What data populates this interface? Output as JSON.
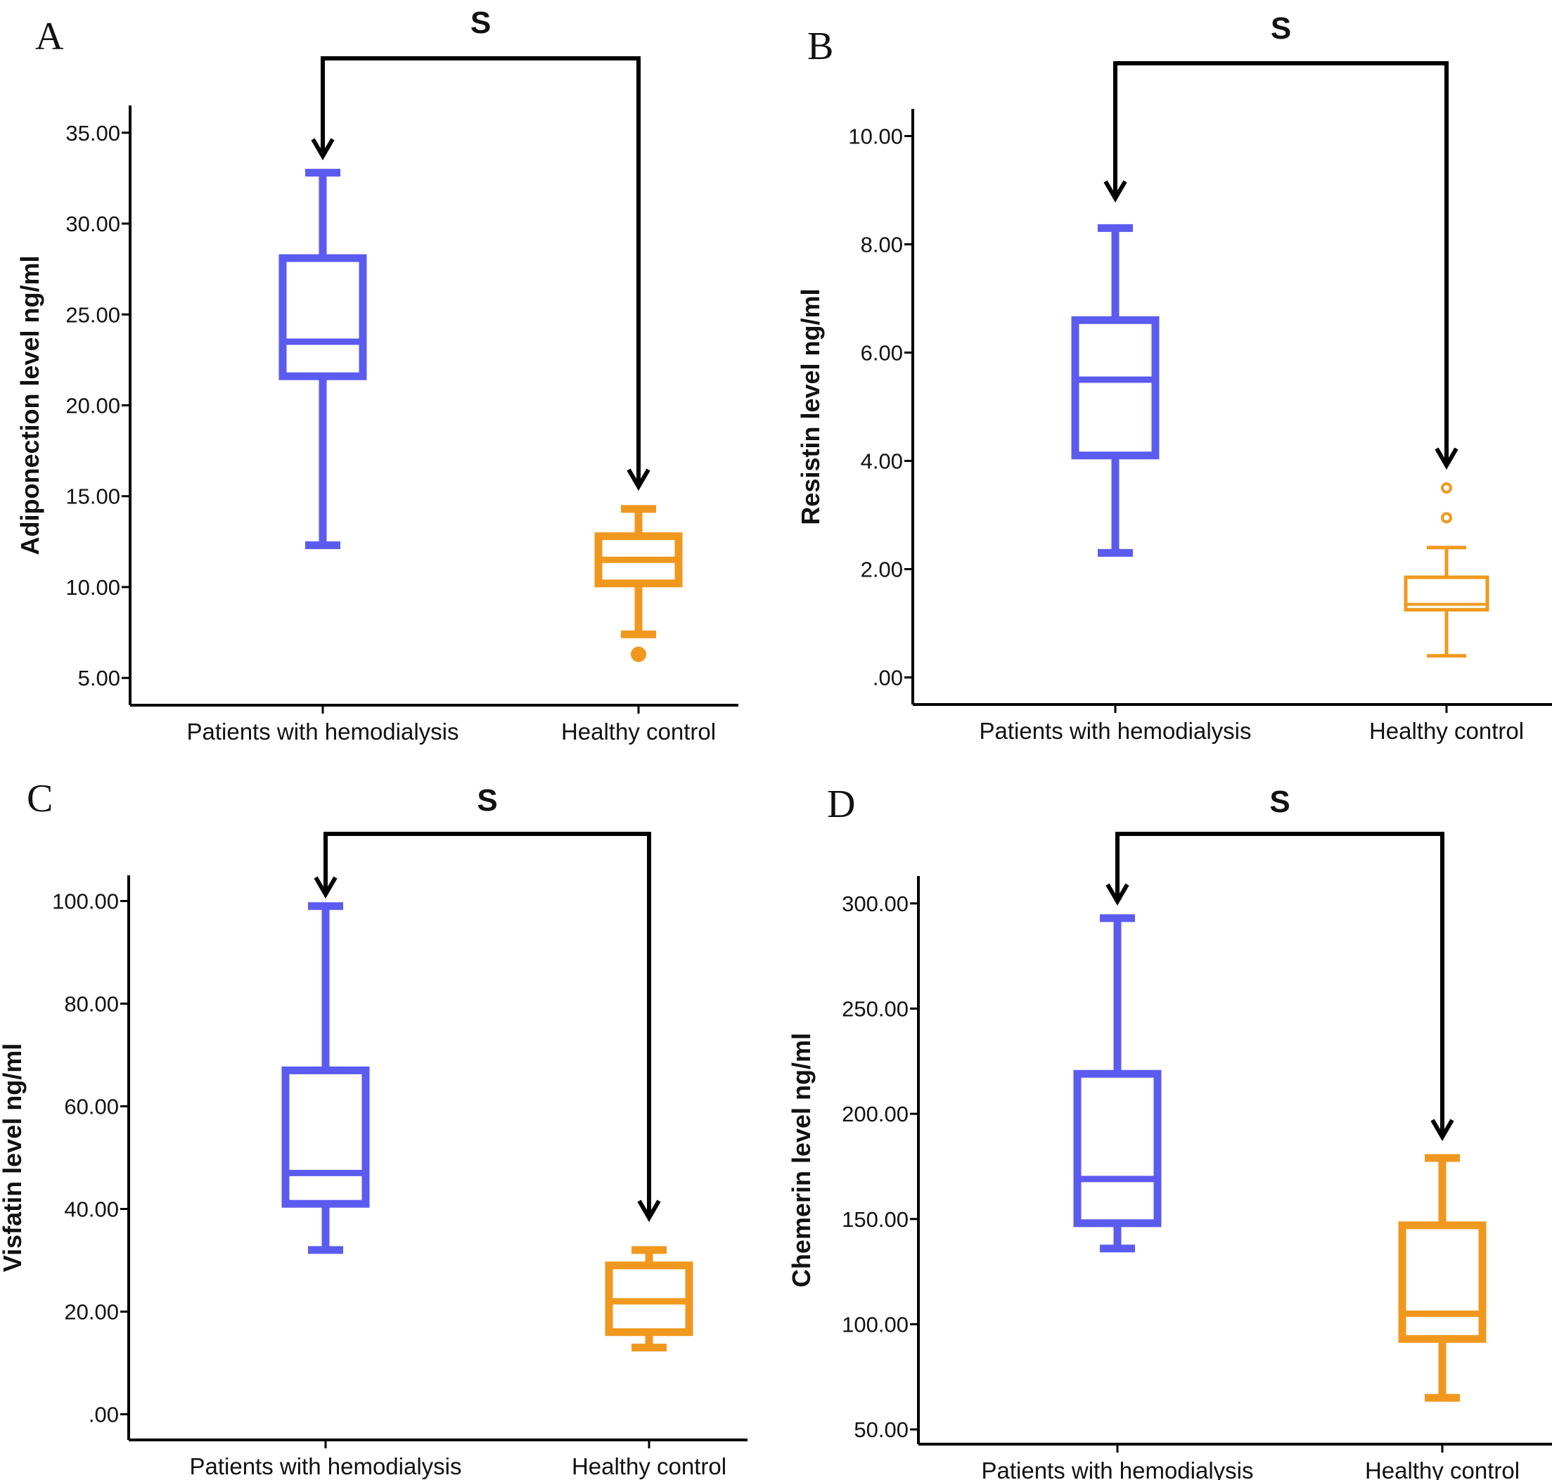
{
  "chart_data": [
    {
      "type": "boxplot",
      "panel": "A",
      "ylabel": "Adiponection level ng/ml",
      "ylim": [
        3.5,
        36.5
      ],
      "yticks": [
        5,
        10,
        15,
        20,
        25,
        30,
        35
      ],
      "ytick_labels": [
        "5.00",
        "10.00",
        "15.00",
        "20.00",
        "25.00",
        "30.00",
        "35.00"
      ],
      "categories": [
        "Patients with hemodialysis",
        "Healthy control"
      ],
      "significance": "S",
      "series": [
        {
          "category": "Patients with hemodialysis",
          "color": "#5b5bf0",
          "min": 12.3,
          "q1": 21.6,
          "median": 23.5,
          "q3": 28.1,
          "max": 32.8,
          "outliers": [],
          "outlier_style": "filled",
          "thick": true
        },
        {
          "category": "Healthy control",
          "color": "#f0981e",
          "min": 7.4,
          "q1": 10.2,
          "median": 11.5,
          "q3": 12.8,
          "max": 14.3,
          "outliers": [
            6.3
          ],
          "outlier_style": "filled",
          "thick": true
        }
      ]
    },
    {
      "type": "boxplot",
      "panel": "B",
      "ylabel": "Resistin level ng/ml",
      "ylim": [
        -0.5,
        10.5
      ],
      "yticks": [
        0,
        2,
        4,
        6,
        8,
        10
      ],
      "ytick_labels": [
        ".00",
        "2.00",
        "4.00",
        "6.00",
        "8.00",
        "10.00"
      ],
      "categories": [
        "Patients with hemodialysis",
        "Healthy control"
      ],
      "significance": "S",
      "series": [
        {
          "category": "Patients with hemodialysis",
          "color": "#5b5bf0",
          "min": 2.3,
          "q1": 4.1,
          "median": 5.5,
          "q3": 6.6,
          "max": 8.3,
          "outliers": [],
          "outlier_style": "filled",
          "thick": true
        },
        {
          "category": "Healthy control",
          "color": "#f0981e",
          "min": 0.4,
          "q1": 1.25,
          "median": 1.35,
          "q3": 1.85,
          "max": 2.4,
          "outliers": [
            2.95,
            3.5
          ],
          "outlier_style": "open",
          "thick": false
        }
      ]
    },
    {
      "type": "boxplot",
      "panel": "C",
      "ylabel": "Visfatin level ng/ml",
      "ylim": [
        -5,
        105
      ],
      "yticks": [
        0,
        20,
        40,
        60,
        80,
        100
      ],
      "ytick_labels": [
        ".00",
        "20.00",
        "40.00",
        "60.00",
        "80.00",
        "100.00"
      ],
      "categories": [
        "Patients with hemodialysis",
        "Healthy control"
      ],
      "significance": "S",
      "series": [
        {
          "category": "Patients with hemodialysis",
          "color": "#5b5bf0",
          "min": 32,
          "q1": 41,
          "median": 47,
          "q3": 67,
          "max": 99,
          "outliers": [],
          "outlier_style": "filled",
          "thick": true
        },
        {
          "category": "Healthy control",
          "color": "#f0981e",
          "min": 13,
          "q1": 16,
          "median": 22,
          "q3": 29,
          "max": 32,
          "outliers": [],
          "outlier_style": "filled",
          "thick": true
        }
      ]
    },
    {
      "type": "boxplot",
      "panel": "D",
      "ylabel": "Chemerin level ng/ml",
      "ylim": [
        43,
        313
      ],
      "yticks": [
        50,
        100,
        150,
        200,
        250,
        300
      ],
      "ytick_labels": [
        "50.00",
        "100.00",
        "150.00",
        "200.00",
        "250.00",
        "300.00"
      ],
      "categories": [
        "Patients with hemodialysis",
        "Healthy control"
      ],
      "significance": "S",
      "series": [
        {
          "category": "Patients with hemodialysis",
          "color": "#5b5bf0",
          "min": 136,
          "q1": 148,
          "median": 169,
          "q3": 219,
          "max": 293,
          "outliers": [],
          "outlier_style": "filled",
          "thick": true
        },
        {
          "category": "Healthy control",
          "color": "#f0981e",
          "min": 65,
          "q1": 93,
          "median": 105,
          "q3": 147,
          "max": 179,
          "outliers": [],
          "outlier_style": "filled",
          "thick": true
        }
      ]
    }
  ]
}
